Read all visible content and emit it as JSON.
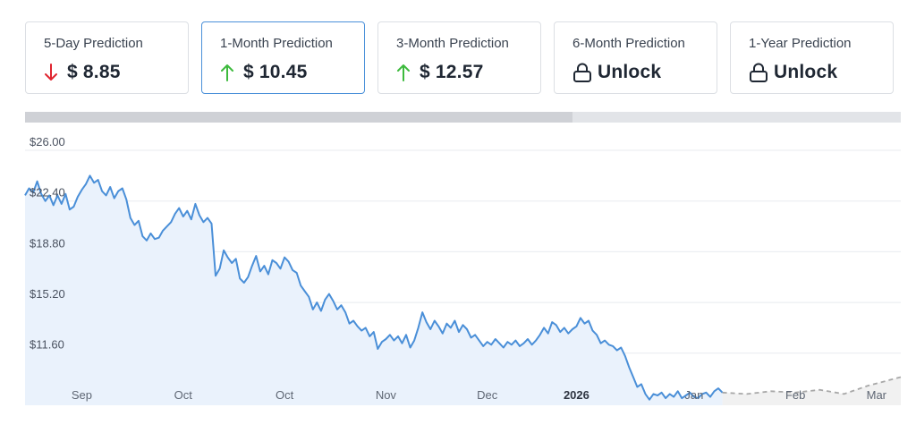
{
  "cards": [
    {
      "label": "5-Day Prediction",
      "value": "$ 8.85",
      "trend": "down",
      "icon": "arrow-down-icon",
      "active": false
    },
    {
      "label": "1-Month Prediction",
      "value": "$ 10.45",
      "trend": "up",
      "icon": "arrow-up-icon",
      "active": true
    },
    {
      "label": "3-Month Prediction",
      "value": "$ 12.57",
      "trend": "up",
      "icon": "arrow-up-icon",
      "active": false
    },
    {
      "label": "6-Month Prediction",
      "value": "Unlock",
      "trend": "locked",
      "icon": "lock-icon",
      "active": false
    },
    {
      "label": "1-Year Prediction",
      "value": "Unlock",
      "trend": "locked",
      "icon": "lock-icon",
      "active": false
    }
  ],
  "colors": {
    "down": "#e0242f",
    "up": "#3dba3d",
    "line": "#4a8fd8",
    "area": "#eaf2fc",
    "forecast": "#a8a8a8",
    "forecast_area": "#f1f1f1",
    "grid": "#e8ebef",
    "active_border": "#4a90d9"
  },
  "scrollbar": {
    "visible_fraction": 0.625
  },
  "chart_data": {
    "type": "line",
    "y_ticks": [
      "$26.00",
      "$22.40",
      "$18.80",
      "$15.20",
      "$11.60"
    ],
    "y_tick_values": [
      26.0,
      22.4,
      18.8,
      15.2,
      11.6
    ],
    "ylim": [
      7.9,
      27.4
    ],
    "xlim": [
      "2025-08-18",
      "2026-03-22"
    ],
    "x_tick_labels": [
      {
        "label": "Sep",
        "date": "2025-09-01",
        "bold": false
      },
      {
        "label": "Oct",
        "date": "2025-09-26",
        "bold": false
      },
      {
        "label": "Oct",
        "date": "2025-10-21",
        "bold": false
      },
      {
        "label": "Nov",
        "date": "2025-11-15",
        "bold": false
      },
      {
        "label": "Dec",
        "date": "2025-12-10",
        "bold": false
      },
      {
        "label": "2026",
        "date": "2026-01-01",
        "bold": true
      },
      {
        "label": "Jan",
        "date": "2026-01-30",
        "bold": false
      },
      {
        "label": "Feb",
        "date": "2026-02-24",
        "bold": false
      },
      {
        "label": "Mar",
        "date": "2026-03-16",
        "bold": false
      }
    ],
    "grid": true,
    "series": [
      {
        "role": "history",
        "style": "solid",
        "points": [
          [
            "2025-08-18",
            22.8
          ],
          [
            "2025-08-19",
            23.3
          ],
          [
            "2025-08-20",
            23.0
          ],
          [
            "2025-08-21",
            23.8
          ],
          [
            "2025-08-22",
            22.9
          ],
          [
            "2025-08-23",
            22.4
          ],
          [
            "2025-08-24",
            22.8
          ],
          [
            "2025-08-25",
            22.1
          ],
          [
            "2025-08-26",
            22.8
          ],
          [
            "2025-08-27",
            22.2
          ],
          [
            "2025-08-28",
            22.9
          ],
          [
            "2025-08-29",
            21.8
          ],
          [
            "2025-08-30",
            22.0
          ],
          [
            "2025-08-31",
            22.7
          ],
          [
            "2025-09-01",
            23.2
          ],
          [
            "2025-09-02",
            23.6
          ],
          [
            "2025-09-03",
            24.2
          ],
          [
            "2025-09-04",
            23.7
          ],
          [
            "2025-09-05",
            23.9
          ],
          [
            "2025-09-06",
            23.1
          ],
          [
            "2025-09-07",
            22.8
          ],
          [
            "2025-09-08",
            23.4
          ],
          [
            "2025-09-09",
            22.6
          ],
          [
            "2025-09-10",
            23.1
          ],
          [
            "2025-09-11",
            23.3
          ],
          [
            "2025-09-12",
            22.5
          ],
          [
            "2025-09-13",
            21.2
          ],
          [
            "2025-09-14",
            20.7
          ],
          [
            "2025-09-15",
            21.0
          ],
          [
            "2025-09-16",
            19.9
          ],
          [
            "2025-09-17",
            19.6
          ],
          [
            "2025-09-18",
            20.1
          ],
          [
            "2025-09-19",
            19.7
          ],
          [
            "2025-09-20",
            19.8
          ],
          [
            "2025-09-21",
            20.3
          ],
          [
            "2025-09-22",
            20.6
          ],
          [
            "2025-09-23",
            20.9
          ],
          [
            "2025-09-24",
            21.5
          ],
          [
            "2025-09-25",
            21.9
          ],
          [
            "2025-09-26",
            21.3
          ],
          [
            "2025-09-27",
            21.7
          ],
          [
            "2025-09-28",
            21.1
          ],
          [
            "2025-09-29",
            22.2
          ],
          [
            "2025-09-30",
            21.4
          ],
          [
            "2025-10-01",
            20.9
          ],
          [
            "2025-10-02",
            21.2
          ],
          [
            "2025-10-03",
            20.8
          ],
          [
            "2025-10-04",
            17.1
          ],
          [
            "2025-10-05",
            17.6
          ],
          [
            "2025-10-06",
            18.9
          ],
          [
            "2025-10-07",
            18.4
          ],
          [
            "2025-10-08",
            18.0
          ],
          [
            "2025-10-09",
            18.3
          ],
          [
            "2025-10-10",
            16.9
          ],
          [
            "2025-10-11",
            16.6
          ],
          [
            "2025-10-12",
            17.0
          ],
          [
            "2025-10-13",
            17.8
          ],
          [
            "2025-10-14",
            18.5
          ],
          [
            "2025-10-15",
            17.4
          ],
          [
            "2025-10-16",
            17.8
          ],
          [
            "2025-10-17",
            17.2
          ],
          [
            "2025-10-18",
            18.2
          ],
          [
            "2025-10-19",
            18.0
          ],
          [
            "2025-10-20",
            17.6
          ],
          [
            "2025-10-21",
            18.4
          ],
          [
            "2025-10-22",
            18.1
          ],
          [
            "2025-10-23",
            17.5
          ],
          [
            "2025-10-24",
            17.3
          ],
          [
            "2025-10-25",
            16.4
          ],
          [
            "2025-10-26",
            16.0
          ],
          [
            "2025-10-27",
            15.6
          ],
          [
            "2025-10-28",
            14.7
          ],
          [
            "2025-10-29",
            15.2
          ],
          [
            "2025-10-30",
            14.6
          ],
          [
            "2025-10-31",
            15.4
          ],
          [
            "2025-11-01",
            15.8
          ],
          [
            "2025-11-02",
            15.3
          ],
          [
            "2025-11-03",
            14.7
          ],
          [
            "2025-11-04",
            15.0
          ],
          [
            "2025-11-05",
            14.5
          ],
          [
            "2025-11-06",
            13.7
          ],
          [
            "2025-11-07",
            13.9
          ],
          [
            "2025-11-08",
            13.5
          ],
          [
            "2025-11-09",
            13.2
          ],
          [
            "2025-11-10",
            13.4
          ],
          [
            "2025-11-11",
            12.8
          ],
          [
            "2025-11-12",
            13.1
          ],
          [
            "2025-11-13",
            11.9
          ],
          [
            "2025-11-14",
            12.4
          ],
          [
            "2025-11-15",
            12.6
          ],
          [
            "2025-11-16",
            12.9
          ],
          [
            "2025-11-17",
            12.5
          ],
          [
            "2025-11-18",
            12.8
          ],
          [
            "2025-11-19",
            12.3
          ],
          [
            "2025-11-20",
            12.9
          ],
          [
            "2025-11-21",
            12.0
          ],
          [
            "2025-11-22",
            12.5
          ],
          [
            "2025-11-23",
            13.4
          ],
          [
            "2025-11-24",
            14.5
          ],
          [
            "2025-11-25",
            13.8
          ],
          [
            "2025-11-26",
            13.3
          ],
          [
            "2025-11-27",
            13.9
          ],
          [
            "2025-11-28",
            13.5
          ],
          [
            "2025-11-29",
            13.0
          ],
          [
            "2025-11-30",
            13.7
          ],
          [
            "2025-12-01",
            13.4
          ],
          [
            "2025-12-02",
            13.9
          ],
          [
            "2025-12-03",
            13.1
          ],
          [
            "2025-12-04",
            13.6
          ],
          [
            "2025-12-05",
            13.3
          ],
          [
            "2025-12-06",
            12.7
          ],
          [
            "2025-12-07",
            12.9
          ],
          [
            "2025-12-08",
            12.5
          ],
          [
            "2025-12-09",
            12.1
          ],
          [
            "2025-12-10",
            12.4
          ],
          [
            "2025-12-11",
            12.2
          ],
          [
            "2025-12-12",
            12.6
          ],
          [
            "2025-12-13",
            12.3
          ],
          [
            "2025-12-14",
            12.0
          ],
          [
            "2025-12-15",
            12.4
          ],
          [
            "2025-12-16",
            12.2
          ],
          [
            "2025-12-17",
            12.5
          ],
          [
            "2025-12-18",
            12.1
          ],
          [
            "2025-12-19",
            12.3
          ],
          [
            "2025-12-20",
            12.6
          ],
          [
            "2025-12-21",
            12.2
          ],
          [
            "2025-12-22",
            12.5
          ],
          [
            "2025-12-23",
            12.9
          ],
          [
            "2025-12-24",
            13.4
          ],
          [
            "2025-12-25",
            13.0
          ],
          [
            "2025-12-26",
            13.8
          ],
          [
            "2025-12-27",
            13.6
          ],
          [
            "2025-12-28",
            13.1
          ],
          [
            "2025-12-29",
            13.4
          ],
          [
            "2025-12-30",
            13.0
          ],
          [
            "2025-12-31",
            13.3
          ],
          [
            "2026-01-01",
            13.5
          ],
          [
            "2026-01-02",
            14.1
          ],
          [
            "2026-01-03",
            13.7
          ],
          [
            "2026-01-04",
            13.9
          ],
          [
            "2026-01-05",
            13.2
          ],
          [
            "2026-01-06",
            12.9
          ],
          [
            "2026-01-07",
            12.3
          ],
          [
            "2026-01-08",
            12.5
          ],
          [
            "2026-01-09",
            12.2
          ],
          [
            "2026-01-10",
            12.1
          ],
          [
            "2026-01-11",
            11.8
          ],
          [
            "2026-01-12",
            12.0
          ],
          [
            "2026-01-13",
            11.4
          ],
          [
            "2026-01-14",
            10.6
          ],
          [
            "2026-01-15",
            9.9
          ],
          [
            "2026-01-16",
            9.2
          ],
          [
            "2026-01-17",
            9.4
          ],
          [
            "2026-01-18",
            8.7
          ],
          [
            "2026-01-19",
            8.3
          ],
          [
            "2026-01-20",
            8.7
          ],
          [
            "2026-01-21",
            8.6
          ],
          [
            "2026-01-22",
            8.8
          ],
          [
            "2026-01-23",
            8.4
          ],
          [
            "2026-01-24",
            8.7
          ],
          [
            "2026-01-25",
            8.5
          ],
          [
            "2026-01-26",
            8.9
          ],
          [
            "2026-01-27",
            8.4
          ],
          [
            "2026-01-28",
            8.6
          ],
          [
            "2026-01-29",
            8.8
          ],
          [
            "2026-01-30",
            8.5
          ],
          [
            "2026-01-31",
            8.4
          ],
          [
            "2026-02-01",
            8.7
          ],
          [
            "2026-02-02",
            8.8
          ],
          [
            "2026-02-03",
            8.5
          ],
          [
            "2026-02-04",
            8.9
          ],
          [
            "2026-02-05",
            9.1
          ],
          [
            "2026-02-06",
            8.8
          ]
        ]
      },
      {
        "role": "forecast",
        "style": "dashed",
        "points": [
          [
            "2026-02-06",
            8.8
          ],
          [
            "2026-02-12",
            8.7
          ],
          [
            "2026-02-18",
            8.9
          ],
          [
            "2026-02-24",
            8.8
          ],
          [
            "2026-03-02",
            9.0
          ],
          [
            "2026-03-08",
            8.7
          ],
          [
            "2026-03-14",
            9.3
          ],
          [
            "2026-03-22",
            9.9
          ]
        ]
      }
    ]
  }
}
